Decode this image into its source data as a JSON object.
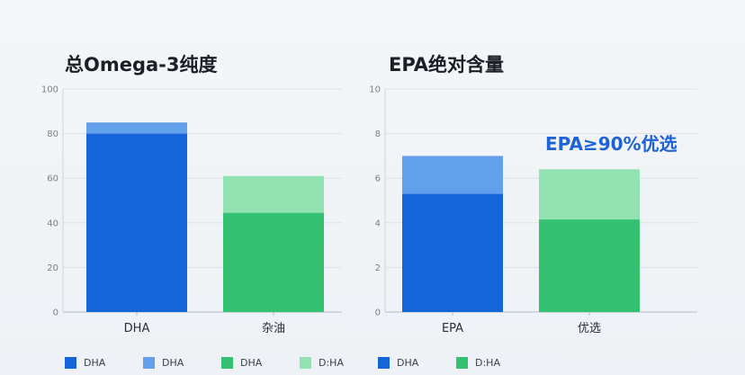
{
  "chart_data": [
    {
      "type": "bar",
      "title": "总Omega-3纯度",
      "categories": [
        "DHA",
        "杂油"
      ],
      "ylim": [
        0,
        100
      ],
      "yticks": [
        0,
        20,
        40,
        60,
        80,
        100
      ],
      "grid": true,
      "stacks": [
        {
          "base": 80,
          "top": 85,
          "base_color": "#1565d8",
          "top_color": "#62a0ec"
        },
        {
          "base": 44.5,
          "top": 61,
          "base_color": "#34c272",
          "top_color": "#93e2b2"
        }
      ]
    },
    {
      "type": "bar",
      "title": "EPA绝对含量",
      "categories": [
        "EPA",
        "优选"
      ],
      "ylim": [
        0,
        10
      ],
      "yticks": [
        0,
        2,
        4,
        6,
        8,
        10
      ],
      "grid": true,
      "annotation": "EPA≥90%优选",
      "stacks": [
        {
          "base": 5.3,
          "top": 7.0,
          "base_color": "#1565d8",
          "top_color": "#62a0ec"
        },
        {
          "base": 4.15,
          "top": 6.4,
          "base_color": "#34c272",
          "top_color": "#93e2b2"
        }
      ]
    }
  ],
  "legend": [
    {
      "label": "DHA",
      "color": "#1565d8"
    },
    {
      "label": "DHA",
      "color": "#62a0ec"
    },
    {
      "label": "DHA",
      "color": "#34c272"
    },
    {
      "label": "D:HA",
      "color": "#93e2b2"
    },
    {
      "label": "DHA",
      "color": "#1565d8"
    },
    {
      "label": "D:HA",
      "color": "#34c272"
    }
  ]
}
